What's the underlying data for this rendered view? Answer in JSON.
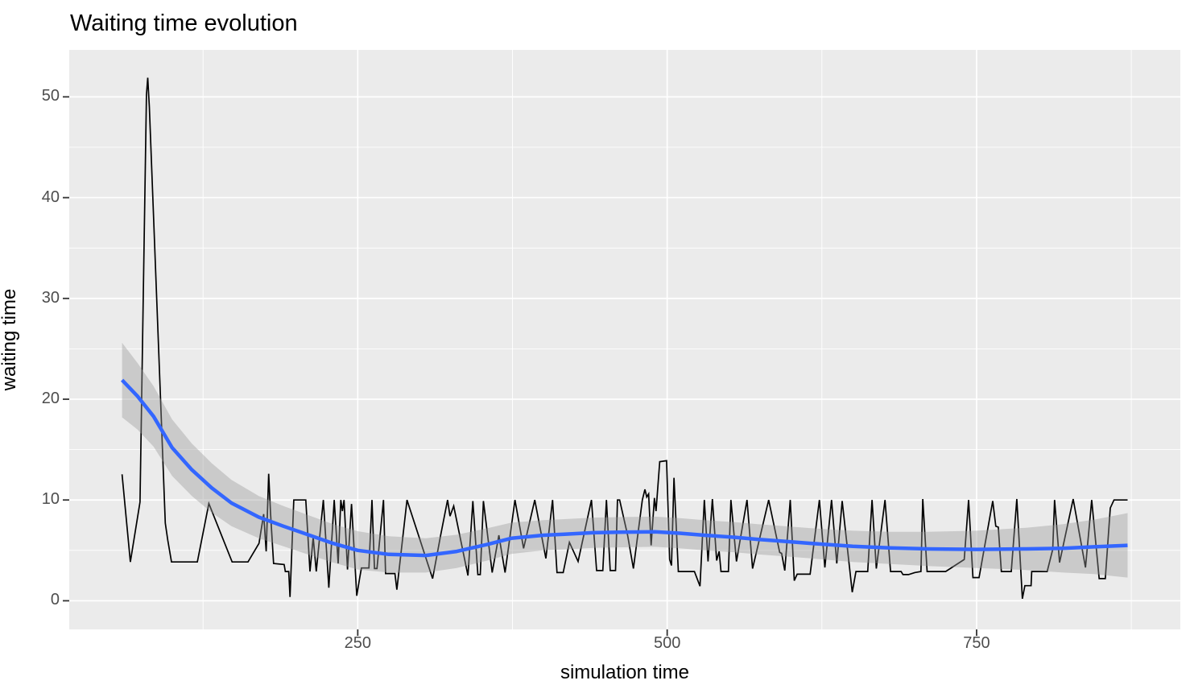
{
  "title": "Waiting time evolution",
  "colors": {
    "panel_background": "#EBEBEB",
    "gridline": "#FFFFFF",
    "raw_line": "#000000",
    "smooth_line": "#3366FF",
    "confidence_band": "#999999",
    "confidence_band_opacity": 0.4,
    "tick_label": "#4D4D4D",
    "tick_mark": "#333333",
    "title_text": "#000000"
  },
  "chart_data": {
    "type": "line",
    "title": "Waiting time evolution",
    "xlabel": "simulation time",
    "ylabel": "waiting time",
    "xlim": [
      16.9,
      914.6
    ],
    "ylim": [
      -2.84,
      54.66
    ],
    "grid": true,
    "legend_position": "none",
    "x_major_ticks": [
      250,
      500,
      750
    ],
    "x_tick_labels": [
      "250",
      "500",
      "750"
    ],
    "x_minor_gridlines": [
      125,
      375,
      625,
      875
    ],
    "y_major_ticks": [
      0,
      10,
      20,
      30,
      40,
      50
    ],
    "y_tick_labels": [
      "0",
      "10",
      "20",
      "30",
      "40",
      "50"
    ],
    "y_minor_gridlines": [
      5,
      15,
      25,
      35,
      45
    ],
    "series": [
      {
        "name": "waiting time (raw)",
        "type": "line",
        "color": "#000000",
        "points": [
          [
            59.6,
            12.55
          ],
          [
            66.3,
            3.85
          ],
          [
            74.1,
            9.8
          ],
          [
            79.3,
            50.2
          ],
          [
            80.3,
            51.9
          ],
          [
            81.6,
            49.0
          ],
          [
            94.5,
            7.7
          ],
          [
            96.5,
            6.0
          ],
          [
            99.5,
            3.85
          ],
          [
            120.4,
            3.85
          ],
          [
            129.7,
            9.65
          ],
          [
            148.5,
            3.85
          ],
          [
            161.3,
            3.85
          ],
          [
            170.2,
            5.7
          ],
          [
            174.0,
            8.6
          ],
          [
            176.0,
            4.9
          ],
          [
            178.0,
            12.6
          ],
          [
            179.5,
            8.7
          ],
          [
            182.0,
            3.7
          ],
          [
            190.5,
            3.6
          ],
          [
            191.5,
            2.9
          ],
          [
            194.2,
            2.9
          ],
          [
            195.3,
            0.38
          ],
          [
            198.3,
            10.0
          ],
          [
            208.0,
            10.0
          ],
          [
            211.4,
            2.9
          ],
          [
            214.0,
            6.3
          ],
          [
            216.5,
            2.9
          ],
          [
            222.2,
            10.0
          ],
          [
            226.6,
            1.3
          ],
          [
            231.0,
            10.0
          ],
          [
            234.2,
            3.7
          ],
          [
            236.3,
            10.0
          ],
          [
            237.6,
            8.9
          ],
          [
            238.9,
            10.0
          ],
          [
            241.7,
            3.1
          ],
          [
            245.0,
            9.6
          ],
          [
            249.2,
            0.5
          ],
          [
            251.6,
            2.3
          ],
          [
            253.0,
            3.25
          ],
          [
            259.0,
            3.25
          ],
          [
            261.5,
            10.0
          ],
          [
            263.5,
            3.2
          ],
          [
            265.5,
            3.2
          ],
          [
            270.8,
            10.0
          ],
          [
            272.5,
            2.7
          ],
          [
            280.0,
            2.7
          ],
          [
            281.6,
            1.1
          ],
          [
            289.8,
            10.0
          ],
          [
            310.5,
            2.2
          ],
          [
            317.0,
            6.5
          ],
          [
            322.6,
            10.0
          ],
          [
            324.5,
            8.4
          ],
          [
            327.5,
            9.4
          ],
          [
            339.0,
            2.5
          ],
          [
            343.0,
            9.9
          ],
          [
            347.0,
            2.6
          ],
          [
            349.0,
            2.6
          ],
          [
            351.5,
            9.9
          ],
          [
            358.6,
            2.8
          ],
          [
            364.0,
            6.5
          ],
          [
            369.0,
            2.8
          ],
          [
            377.0,
            10.0
          ],
          [
            384.0,
            5.2
          ],
          [
            393.0,
            10.0
          ],
          [
            402.0,
            4.2
          ],
          [
            407.4,
            10.0
          ],
          [
            411.0,
            2.8
          ],
          [
            416.0,
            2.8
          ],
          [
            421.0,
            5.8
          ],
          [
            428.0,
            3.9
          ],
          [
            438.8,
            10.0
          ],
          [
            443.0,
            3.0
          ],
          [
            448.0,
            3.0
          ],
          [
            450.9,
            10.0
          ],
          [
            454.0,
            3.0
          ],
          [
            458.3,
            3.0
          ],
          [
            459.8,
            10.0
          ],
          [
            461.6,
            10.0
          ],
          [
            468.0,
            6.5
          ],
          [
            472.7,
            3.2
          ],
          [
            479.9,
            10.0
          ],
          [
            482.0,
            11.05
          ],
          [
            483.5,
            10.3
          ],
          [
            485.0,
            10.6
          ],
          [
            487.0,
            5.5
          ],
          [
            489.7,
            10.2
          ],
          [
            491.0,
            8.9
          ],
          [
            494.0,
            13.8
          ],
          [
            499.5,
            13.9
          ],
          [
            502.0,
            4.1
          ],
          [
            503.5,
            3.5
          ],
          [
            505.5,
            12.2
          ],
          [
            509.0,
            2.9
          ],
          [
            522.0,
            2.9
          ],
          [
            526.5,
            1.45
          ],
          [
            530.0,
            10.0
          ],
          [
            533.0,
            3.9
          ],
          [
            536.5,
            10.1
          ],
          [
            540.0,
            4.0
          ],
          [
            542.0,
            4.9
          ],
          [
            543.5,
            2.9
          ],
          [
            549.5,
            2.9
          ],
          [
            551.5,
            10.0
          ],
          [
            556.0,
            3.9
          ],
          [
            564.5,
            10.0
          ],
          [
            569.0,
            3.2
          ],
          [
            582.0,
            10.0
          ],
          [
            590.9,
            4.8
          ],
          [
            592.5,
            4.7
          ],
          [
            595.0,
            3.0
          ],
          [
            599.4,
            10.0
          ],
          [
            602.7,
            2.0
          ],
          [
            605.0,
            2.64
          ],
          [
            615.5,
            2.64
          ],
          [
            623.0,
            10.0
          ],
          [
            627.4,
            3.3
          ],
          [
            632.8,
            10.0
          ],
          [
            637.0,
            3.7
          ],
          [
            641.4,
            9.9
          ],
          [
            649.5,
            0.85
          ],
          [
            652.5,
            2.9
          ],
          [
            662.0,
            2.9
          ],
          [
            665.5,
            10.0
          ],
          [
            669.0,
            3.2
          ],
          [
            676.0,
            10.0
          ],
          [
            680.5,
            2.9
          ],
          [
            689.0,
            2.9
          ],
          [
            690.5,
            2.6
          ],
          [
            695.0,
            2.6
          ],
          [
            700.0,
            2.8
          ],
          [
            705.0,
            2.9
          ],
          [
            706.5,
            10.1
          ],
          [
            710.0,
            2.9
          ],
          [
            725.0,
            2.9
          ],
          [
            740.0,
            4.1
          ],
          [
            743.5,
            10.0
          ],
          [
            747.0,
            2.3
          ],
          [
            752.0,
            2.3
          ],
          [
            763.0,
            9.9
          ],
          [
            765.5,
            7.4
          ],
          [
            767.5,
            7.3
          ],
          [
            770.0,
            2.9
          ],
          [
            778.0,
            2.9
          ],
          [
            782.5,
            10.1
          ],
          [
            787.0,
            0.2
          ],
          [
            789.0,
            1.5
          ],
          [
            794.0,
            1.5
          ],
          [
            794.5,
            2.9
          ],
          [
            807.0,
            2.9
          ],
          [
            811.5,
            5.1
          ],
          [
            813.0,
            10.0
          ],
          [
            817.0,
            3.8
          ],
          [
            828.0,
            10.1
          ],
          [
            838.0,
            3.3
          ],
          [
            843.0,
            10.0
          ],
          [
            849.0,
            2.2
          ],
          [
            854.0,
            2.2
          ],
          [
            858.0,
            9.2
          ],
          [
            861.0,
            10.0
          ],
          [
            872.0,
            10.0
          ]
        ]
      },
      {
        "name": "loess smooth",
        "type": "line",
        "color": "#3366FF",
        "points": [
          [
            59.6,
            21.9
          ],
          [
            72,
            20.3
          ],
          [
            85,
            18.3
          ],
          [
            100,
            15.2
          ],
          [
            116,
            13.0
          ],
          [
            132,
            11.2
          ],
          [
            148,
            9.7
          ],
          [
            170,
            8.3
          ],
          [
            190,
            7.4
          ],
          [
            211,
            6.5
          ],
          [
            230,
            5.7
          ],
          [
            250,
            5.0
          ],
          [
            275,
            4.6
          ],
          [
            305,
            4.5
          ],
          [
            330,
            4.9
          ],
          [
            355,
            5.6
          ],
          [
            374,
            6.2
          ],
          [
            400,
            6.5
          ],
          [
            417,
            6.6
          ],
          [
            440,
            6.75
          ],
          [
            460,
            6.8
          ],
          [
            490,
            6.85
          ],
          [
            510,
            6.7
          ],
          [
            530,
            6.5
          ],
          [
            555,
            6.3
          ],
          [
            573,
            6.1
          ],
          [
            595,
            5.9
          ],
          [
            616,
            5.7
          ],
          [
            650,
            5.4
          ],
          [
            680,
            5.25
          ],
          [
            710,
            5.15
          ],
          [
            750,
            5.1
          ],
          [
            790,
            5.15
          ],
          [
            820,
            5.2
          ],
          [
            845,
            5.35
          ],
          [
            872,
            5.5
          ]
        ]
      },
      {
        "name": "confidence band",
        "type": "area",
        "color": "#999999",
        "x": [
          59.6,
          72,
          85,
          100,
          116,
          132,
          148,
          170,
          190,
          211,
          230,
          250,
          275,
          305,
          330,
          355,
          374,
          400,
          417,
          440,
          460,
          490,
          510,
          530,
          555,
          573,
          595,
          616,
          650,
          680,
          710,
          750,
          790,
          820,
          845,
          872
        ],
        "lower": [
          18.2,
          17.0,
          15.3,
          12.4,
          10.4,
          8.75,
          7.4,
          6.2,
          5.4,
          4.55,
          3.8,
          3.1,
          2.8,
          2.8,
          3.25,
          4.0,
          4.65,
          5.0,
          5.1,
          5.25,
          5.3,
          5.35,
          5.2,
          5.0,
          4.8,
          4.6,
          4.4,
          4.2,
          3.85,
          3.65,
          3.45,
          3.25,
          3.05,
          2.8,
          2.65,
          2.3
        ],
        "upper": [
          25.6,
          23.6,
          21.3,
          18.0,
          15.6,
          13.65,
          12.0,
          10.4,
          9.4,
          8.45,
          7.6,
          6.9,
          6.4,
          6.2,
          6.55,
          7.2,
          7.75,
          8.0,
          8.1,
          8.25,
          8.3,
          8.35,
          8.2,
          8.0,
          7.8,
          7.6,
          7.4,
          7.2,
          6.95,
          6.85,
          6.85,
          6.95,
          7.25,
          7.6,
          8.05,
          8.7
        ]
      }
    ]
  }
}
